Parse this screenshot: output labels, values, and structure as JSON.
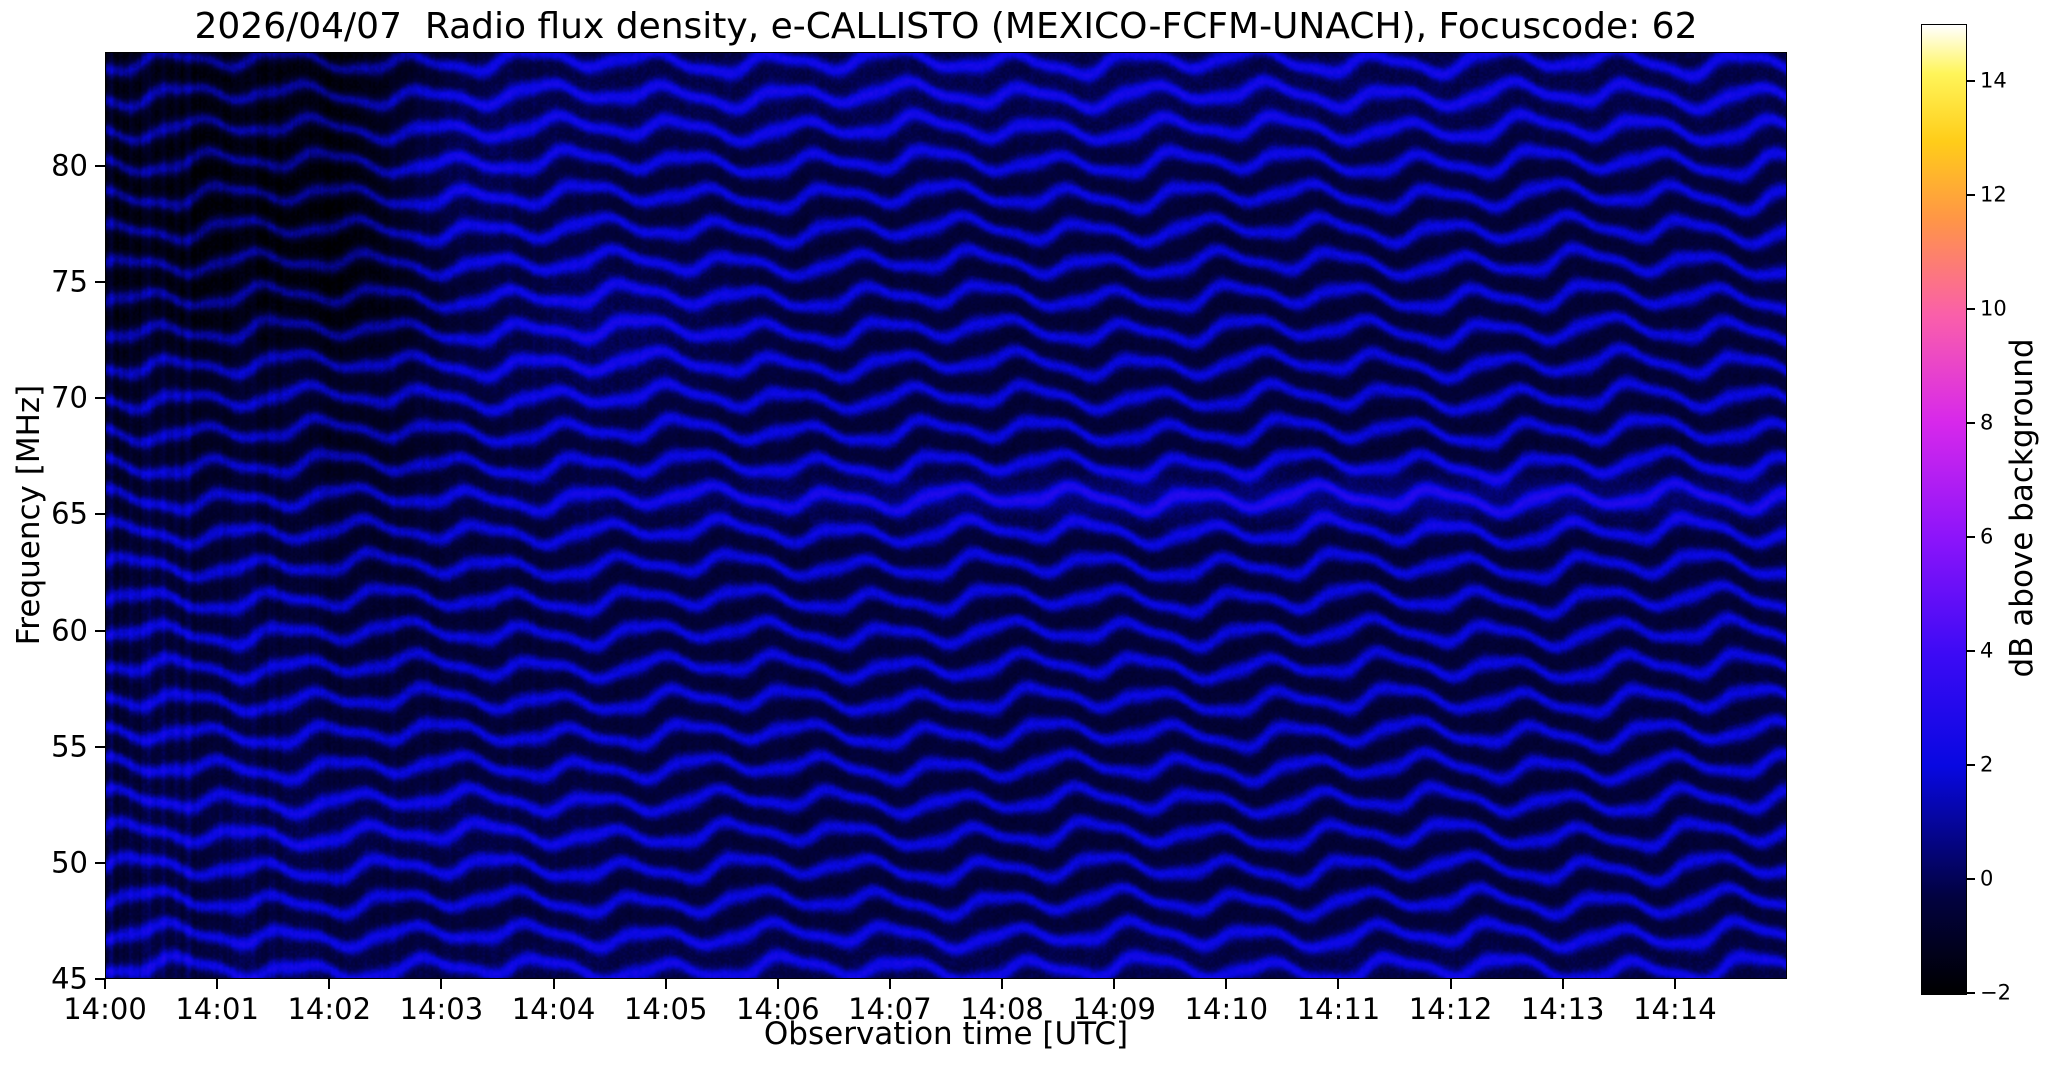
{
  "chart_data": {
    "type": "heatmap",
    "title": "2026/04/07  Radio flux density, e-CALLISTO (MEXICO-FCFM-UNACH), Focuscode: 62",
    "date": "2026/04/07",
    "station": "MEXICO-FCFM-UNACH",
    "focuscode": "62",
    "xlabel": "Observation time [UTC]",
    "ylabel": "Frequency [MHz]",
    "x_ticks": [
      "14:00",
      "14:01",
      "14:02",
      "14:03",
      "14:04",
      "14:05",
      "14:06",
      "14:07",
      "14:08",
      "14:09",
      "14:10",
      "14:11",
      "14:12",
      "14:13",
      "14:14"
    ],
    "x_tick_minutes": [
      0,
      1,
      2,
      3,
      4,
      5,
      6,
      7,
      8,
      9,
      10,
      11,
      12,
      13,
      14
    ],
    "x_range_minutes": [
      0,
      15
    ],
    "y_ticks": [
      80,
      75,
      70,
      65,
      60,
      55,
      50,
      45
    ],
    "y_range_mhz": [
      45,
      84.9
    ],
    "grid": false,
    "colorbar": {
      "label": "dB above background",
      "tick_labels": [
        "14",
        "12",
        "10",
        "8",
        "6",
        "4",
        "2",
        "0",
        "−2"
      ],
      "tick_values": [
        14,
        12,
        10,
        8,
        6,
        4,
        2,
        0,
        -2
      ],
      "value_range": [
        -2,
        15
      ],
      "colormap": "gnuplot2-like (black-blue-violet-magenta-orange-yellow-white)",
      "colormap_stops": [
        [
          0.0,
          0,
          0,
          0
        ],
        [
          0.1,
          2,
          2,
          64
        ],
        [
          0.235,
          8,
          8,
          225
        ],
        [
          0.35,
          60,
          10,
          245
        ],
        [
          0.47,
          140,
          20,
          250
        ],
        [
          0.59,
          215,
          40,
          235
        ],
        [
          0.7,
          250,
          95,
          170
        ],
        [
          0.8,
          255,
          150,
          70
        ],
        [
          0.88,
          255,
          205,
          25
        ],
        [
          0.95,
          255,
          245,
          90
        ],
        [
          1.0,
          255,
          255,
          255
        ]
      ]
    },
    "pattern": {
      "description": "Dark navy background (≈ -0.5 dB) with bright blue wavy interference fringes (≈ 2 dB peaks); darker patch upper-left before 14:03 above ~69 MHz; vertical striping in first minutes; brighter undulating band near 65.7 MHz after ~14:05.",
      "fringe_period_mhz": 1.45,
      "base": -0.55,
      "amp": 2.6,
      "sharpness": 2.1,
      "noise": 0.5,
      "stripe_base": 0.16,
      "stripe_left": 0.85,
      "stripe_decay": 2.2,
      "warp": [
        {
          "amp": 1.35,
          "period": 1.08,
          "f_phase": 0.5,
          "phase0": 0.0,
          "grow": 0.35
        },
        {
          "amp": 0.7,
          "period": 2.9,
          "f_phase": 0.12,
          "phase0": 1.3,
          "grow": 0.0
        },
        {
          "amp": 0.45,
          "period": 0.45,
          "f_phase": 0.045,
          "phase0": 4.0,
          "grow": 0.0
        }
      ],
      "highlights": [
        {
          "f": 65.7,
          "f_sigma": 0.8,
          "t": 10.8,
          "t_sigma": 4.5,
          "amp": 1.05
        },
        {
          "f": 83.2,
          "f_sigma": 2.0,
          "t": 9.0,
          "t_sigma": 7.0,
          "amp": 0.5
        },
        {
          "f": 45.7,
          "f_sigma": 1.1,
          "t": 8.0,
          "t_sigma": 9.0,
          "amp": 0.38
        },
        {
          "f": 79.5,
          "f_sigma": 3.0,
          "t": 3.05,
          "t_sigma": 0.55,
          "amp": 0.85
        },
        {
          "f": 73.0,
          "f_sigma": 2.2,
          "t": 4.5,
          "t_sigma": 0.8,
          "amp": 0.6
        },
        {
          "f": 70.8,
          "f_sigma": 1.3,
          "t": 2.0,
          "t_sigma": 1.2,
          "amp": 0.55
        },
        {
          "f": 51.5,
          "f_sigma": 1.5,
          "t": 2.6,
          "t_sigma": 1.5,
          "amp": 0.4
        }
      ],
      "dark_patches": [
        {
          "t": 1.1,
          "t_sigma": 1.3,
          "f_min": 69,
          "f_soft": 3.0,
          "amp": 1.25
        },
        {
          "t": 2.3,
          "t_sigma": 0.5,
          "f_min": 64,
          "f_soft": 5.0,
          "amp": 0.6
        }
      ]
    }
  }
}
